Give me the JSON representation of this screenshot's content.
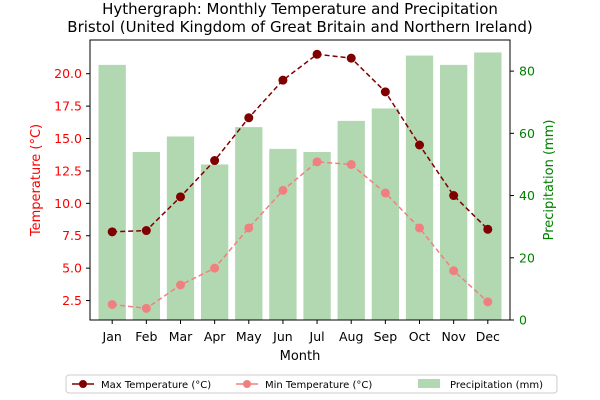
{
  "chart_data": {
    "type": "bar+line",
    "title_line1": "Hythergraph: Monthly Temperature and Precipitation",
    "title_line2": "Bristol (United Kingdom of Great Britain and Northern Ireland)",
    "xlabel": "Month",
    "ylabel_left": "Temperature (°C)",
    "ylabel_right": "Precipitation (mm)",
    "categories": [
      "Jan",
      "Feb",
      "Mar",
      "Apr",
      "May",
      "Jun",
      "Jul",
      "Aug",
      "Sep",
      "Oct",
      "Nov",
      "Dec"
    ],
    "y_left_lim": [
      1.0,
      22.6
    ],
    "y_left_ticks": [
      "2.5",
      "5.0",
      "7.5",
      "10.0",
      "12.5",
      "15.0",
      "17.5",
      "20.0"
    ],
    "y_right_lim": [
      0,
      90
    ],
    "y_right_ticks": [
      "0",
      "20",
      "40",
      "60",
      "80"
    ],
    "series": [
      {
        "name": "Max Temperature (°C)",
        "kind": "line",
        "axis": "left",
        "values": [
          7.8,
          7.9,
          10.5,
          13.3,
          16.6,
          19.5,
          21.5,
          21.2,
          18.6,
          14.5,
          10.6,
          8.0
        ]
      },
      {
        "name": "Min Temperature (°C)",
        "kind": "line",
        "axis": "left",
        "values": [
          2.2,
          1.9,
          3.7,
          5.0,
          8.1,
          11.0,
          13.2,
          13.0,
          10.8,
          8.1,
          4.8,
          2.4
        ]
      },
      {
        "name": "Precipitation (mm)",
        "kind": "bar",
        "axis": "right",
        "values": [
          82,
          54,
          59,
          50,
          62,
          55,
          54,
          64,
          68,
          85,
          82,
          86
        ]
      }
    ],
    "legend_position": "bottom-center",
    "colors": {
      "max_temp": "#800000",
      "min_temp": "#f08080",
      "precip": "#b2d8b2",
      "left_axis": "#ff0000",
      "right_axis": "#008000"
    }
  }
}
